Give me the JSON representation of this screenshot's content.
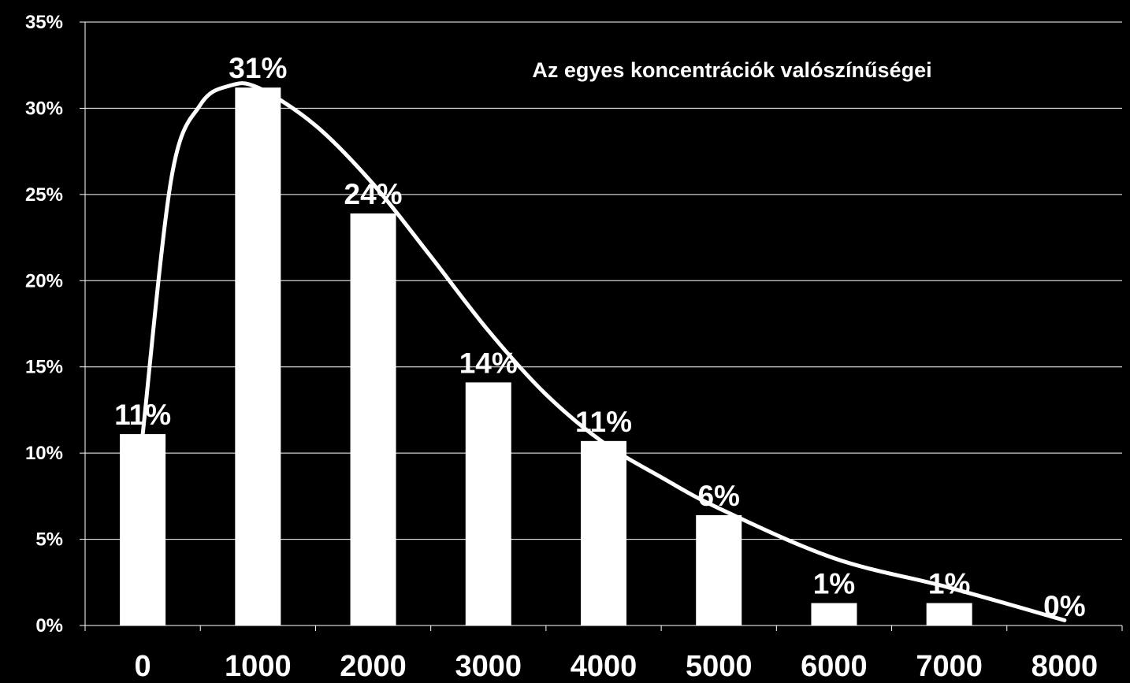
{
  "chart_data": {
    "type": "bar",
    "title": "Az egyes koncentrációk valószínűségei",
    "xlabel": "",
    "ylabel": "",
    "categories": [
      "0",
      "1000",
      "2000",
      "3000",
      "4000",
      "5000",
      "6000",
      "7000",
      "8000"
    ],
    "values": [
      11.1,
      31.2,
      23.9,
      14.1,
      10.7,
      6.4,
      1.3,
      1.3,
      0
    ],
    "data_labels": [
      "11%",
      "31%",
      "24%",
      "14%",
      "11%",
      "6%",
      "1%",
      "1%",
      "0%"
    ],
    "ylim": [
      0,
      35
    ],
    "y_ticks": [
      "0%",
      "5%",
      "10%",
      "15%",
      "20%",
      "25%",
      "30%",
      "35%"
    ],
    "grid": true,
    "legend": "none",
    "overlay_curve": {
      "type": "line",
      "x": [
        0,
        250,
        500,
        750,
        1000,
        1500,
        2000,
        2500,
        3000,
        3500,
        4000,
        4500,
        5000,
        6000,
        7000,
        8000
      ],
      "y": [
        11.1,
        26.0,
        30.2,
        31.3,
        31.2,
        29.0,
        25.6,
        21.4,
        17.1,
        13.4,
        10.6,
        8.6,
        6.8,
        3.9,
        2.2,
        0.3
      ]
    },
    "colors": {
      "background": "#000000",
      "bars": "#ffffff",
      "curve": "#ffffff",
      "grid": "#ffffff",
      "text": "#ffffff"
    }
  }
}
